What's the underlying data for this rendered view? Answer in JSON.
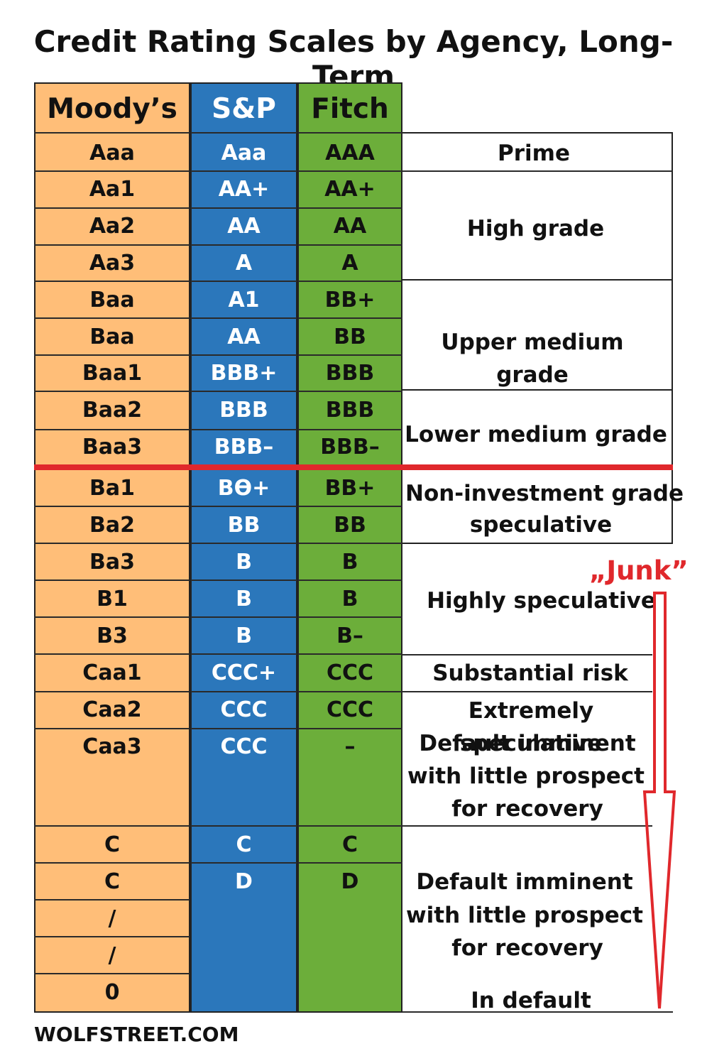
{
  "title": "Credit Rating Scales by Agency, Long-Term",
  "headers": {
    "moodys": "Moody’s",
    "sp": "S&P",
    "fitch": "Fitch"
  },
  "rows": [
    {
      "moodys": "Aaa",
      "sp": "Aaa",
      "fitch": "AAA"
    },
    {
      "moodys": "Aa1",
      "sp": "AA+",
      "fitch": "AA+"
    },
    {
      "moodys": "Aa2",
      "sp": "AA",
      "fitch": "AA"
    },
    {
      "moodys": "Aa3",
      "sp": "A",
      "fitch": "A"
    },
    {
      "moodys": "Baa",
      "sp": "A1",
      "fitch": "BB+"
    },
    {
      "moodys": "Baa",
      "sp": "AA",
      "fitch": "BB"
    },
    {
      "moodys": "Baa1",
      "sp": "BBB+",
      "fitch": "BBB"
    },
    {
      "moodys": "Baa2",
      "sp": "BBB",
      "fitch": "BBB"
    },
    {
      "moodys": "Baa3",
      "sp": "BBB–",
      "fitch": "BBB–"
    },
    {
      "moodys": "Ba1",
      "sp": "Bϴ+",
      "fitch": "BB+"
    },
    {
      "moodys": "Ba2",
      "sp": "BB",
      "fitch": "BB"
    },
    {
      "moodys": "Ba3",
      "sp": "B",
      "fitch": "B"
    },
    {
      "moodys": "B1",
      "sp": "B",
      "fitch": "B"
    },
    {
      "moodys": "B3",
      "sp": "B",
      "fitch": "B–"
    },
    {
      "moodys": "Caa1",
      "sp": "CCC+",
      "fitch": "CCC"
    },
    {
      "moodys": "Caa2",
      "sp": "CCC",
      "fitch": "CCC"
    },
    {
      "moodys": "Caa3",
      "sp": "CCC",
      "fitch": "–"
    },
    {
      "moodys": "C",
      "sp": "C",
      "fitch": "C"
    },
    {
      "moodys": "C",
      "sp": "D",
      "fitch": "D"
    },
    {
      "moodys": "/",
      "sp": "",
      "fitch": ""
    },
    {
      "moodys": "/",
      "sp": "",
      "fitch": ""
    },
    {
      "moodys": "0",
      "sp": "",
      "fitch": ""
    }
  ],
  "descriptions": {
    "prime": "Prime",
    "high_grade": "High grade",
    "upper_medium": "Upper medium grade",
    "lower_medium": "Lower medium grade",
    "non_investment_1": "Non-investment grade",
    "non_investment_2": "speculative",
    "highly_speculative": "Highly speculative",
    "substantial_risk": "Substantial risk",
    "extremely_speculative": "Extremely speculative",
    "default_a_1": "Default imminent",
    "default_a_2": "with little prospect",
    "default_a_3": "for recovery",
    "default_b_1": "Default imminent",
    "default_b_2": "with little prospect",
    "default_b_3": "for recovery",
    "in_default": "In default"
  },
  "junk_label": "„Junk”",
  "footer": "WOLFSTREET.COM",
  "colors": {
    "moodys": "#ffbe78",
    "sp": "#2b77bb",
    "fitch": "#6cae3a",
    "divider": "#e0282c"
  }
}
